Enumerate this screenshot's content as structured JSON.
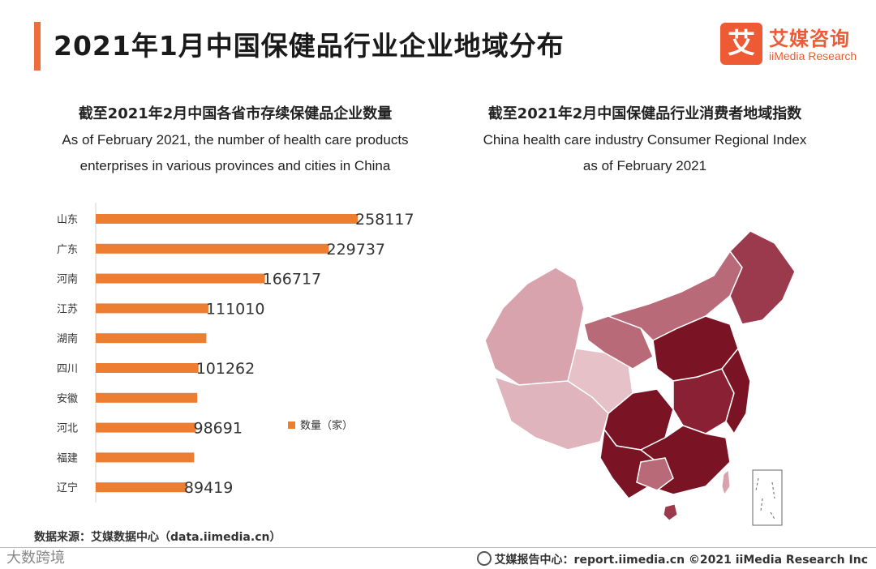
{
  "header": {
    "title": "2021年1月中国保健品行业企业地域分布",
    "logo_mark": "艾",
    "logo_cn": "艾媒咨询",
    "logo_en": "iiMedia Research"
  },
  "left_panel": {
    "title": "截至2021年2月中国各省市存续保健品企业数量",
    "subtitle_line1": "As of February 2021, the number of health care products",
    "subtitle_line2": "enterprises in various provinces and cities in China"
  },
  "right_panel": {
    "title": "截至2021年2月中国保健品行业消费者地域指数",
    "subtitle_line1": "China health care industry Consumer Regional Index",
    "subtitle_line2": "as of February 2021"
  },
  "chart_data": {
    "type": "bar",
    "orientation": "horizontal",
    "categories": [
      "山东",
      "广东",
      "河南",
      "江苏",
      "湖南",
      "四川",
      "安徽",
      "河北",
      "福建",
      "辽宁"
    ],
    "values": [
      258117,
      229737,
      166717,
      111010,
      109000,
      101262,
      100000,
      98691,
      97000,
      89419
    ],
    "labels": [
      "258117",
      "229737",
      "166717",
      "111010",
      "",
      "101262",
      "",
      "98691",
      "",
      "89419"
    ],
    "legend": "数量（家）",
    "legend_position": "right",
    "xlim": [
      0,
      258117
    ],
    "bar_color": "#ed7d31"
  },
  "map": {
    "colors": [
      "#7a1424",
      "#9a3a4c",
      "#b86a78",
      "#d9a3ad"
    ]
  },
  "footer": {
    "source": "数据来源：艾媒数据中心（data.iimedia.cn）",
    "right_text": "艾媒报告中心：report.iimedia.cn  ©2021  iiMedia Research  Inc",
    "left_watermark": "大数跨境"
  }
}
